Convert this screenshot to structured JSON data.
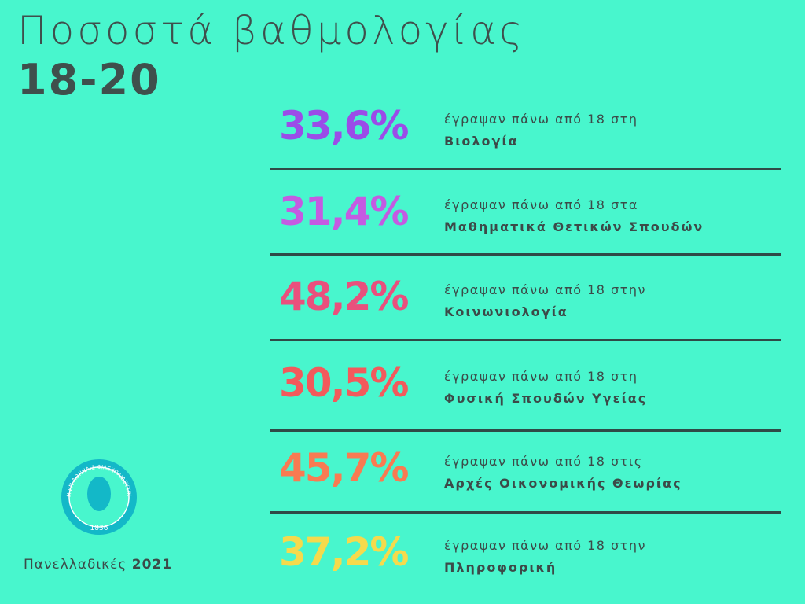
{
  "header": {
    "title": "Ποσοστά βαθμολογίας",
    "subtitle": "18-20"
  },
  "items": [
    {
      "value": "33,6%",
      "text": "έγραψαν πάνω από 18 στη",
      "subject": "Βιολογία",
      "color": "#9b4ce8"
    },
    {
      "value": "31,4%",
      "text": "έγραψαν πάνω από 18 στα",
      "subject": "Μαθηματικά Θετικών Σπουδών",
      "color": "#c45be2"
    },
    {
      "value": "48,2%",
      "text": "έγραψαν πάνω από 18 στην",
      "subject": "Κοινωνιολογία",
      "color": "#e9507d"
    },
    {
      "value": "30,5%",
      "text": "έγραψαν πάνω από 18 στη",
      "subject": "Φυσική Σπουδών Υγείας",
      "color": "#f25a5c"
    },
    {
      "value": "45,7%",
      "text": "έγραψαν πάνω από 18 στις",
      "subject": "Αρχές Οικονομικής Θεωρίας",
      "color": "#f87b52"
    },
    {
      "value": "37,2%",
      "text": "έγραψαν πάνω από 18 στην",
      "subject": "Πληροφορική",
      "color": "#f5da4c"
    }
  ],
  "logo": {
    "ring": "Η ΕΝ ΑΘΗΝΑΙΣ ΦΙΛΕΚΠΑΙΔΕΥΤΙΚΗ ΕΤΑΙΡΕΙΑ",
    "year": "1836"
  },
  "footer": {
    "label": "Πανελλαδικές",
    "year": "2021"
  }
}
